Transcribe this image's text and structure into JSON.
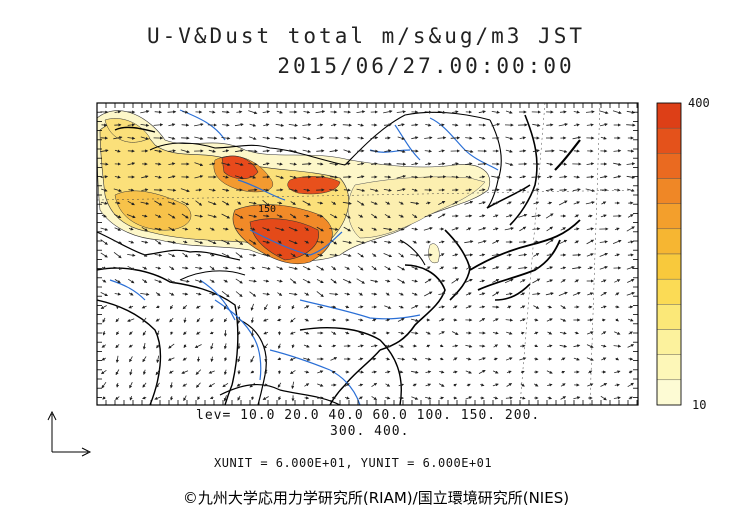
{
  "header": {
    "title_line1": "U-V&Dust total m/s&ug/m3 JST",
    "title_line2": "2015/06/27.00:00:00"
  },
  "contour_legend": {
    "line1": "lev= 10.0 20.0 40.0 60.0 100. 150. 200.",
    "line2": "300. 400."
  },
  "units_line": "XUNIT = 6.000E+01, YUNIT = 6.000E+01",
  "colorbar": {
    "max_label": "400",
    "min_label": "10",
    "colors": [
      "#fdfbd4",
      "#fdf7b8",
      "#fcf29d",
      "#fbe878",
      "#fbdb55",
      "#f8c93c",
      "#f6b632",
      "#f39f2c",
      "#ef8726",
      "#ea6a20",
      "#e4521b",
      "#dd3f17"
    ]
  },
  "map_labels": [
    "150"
  ],
  "credit": "©九州大学応用力学研究所(RIAM)/国立環境研究所(NIES)",
  "colors": {
    "coast": "#000000",
    "river": "#2a6fd6",
    "dust_low": "#fdf7c9",
    "dust_high": "#e8441a"
  }
}
